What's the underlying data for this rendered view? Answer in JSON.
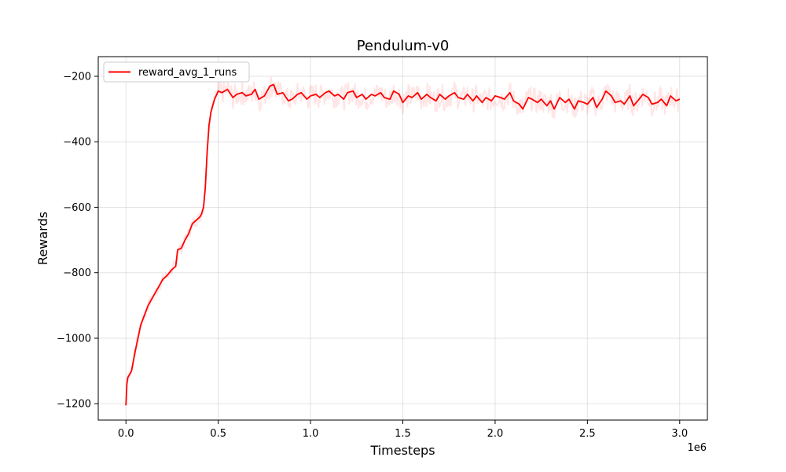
{
  "chart_data": {
    "type": "line",
    "title": "Pendulum-v0",
    "xlabel": "Timesteps",
    "ylabel": "Rewards",
    "x_scale_label": "1e6",
    "xlim": [
      -0.15,
      3.15
    ],
    "ylim": [
      -1250,
      -140
    ],
    "x_ticks": [
      0.0,
      0.5,
      1.0,
      1.5,
      2.0,
      2.5,
      3.0
    ],
    "x_tick_labels": [
      "0.0",
      "0.5",
      "1.0",
      "1.5",
      "2.0",
      "2.5",
      "3.0"
    ],
    "y_ticks": [
      -1200,
      -1000,
      -800,
      -600,
      -400,
      -200
    ],
    "y_tick_labels": [
      "−1200",
      "−1000",
      "−800",
      "−600",
      "−400",
      "−200"
    ],
    "grid": true,
    "legend_position": "top-left",
    "series": [
      {
        "name": "reward_avg_1_runs",
        "color": "#ff0000",
        "raw_color": "#ff0000",
        "raw_alpha": 0.1,
        "x": [
          0.0,
          0.005,
          0.01,
          0.03,
          0.05,
          0.08,
          0.1,
          0.12,
          0.15,
          0.18,
          0.2,
          0.22,
          0.25,
          0.27,
          0.28,
          0.3,
          0.32,
          0.34,
          0.36,
          0.38,
          0.4,
          0.41,
          0.42,
          0.43,
          0.44,
          0.45,
          0.46,
          0.47,
          0.48,
          0.5,
          0.52,
          0.55,
          0.58,
          0.6,
          0.63,
          0.65,
          0.68,
          0.7,
          0.72,
          0.75,
          0.78,
          0.8,
          0.82,
          0.85,
          0.88,
          0.9,
          0.93,
          0.95,
          0.98,
          1.0,
          1.03,
          1.05,
          1.08,
          1.1,
          1.13,
          1.15,
          1.18,
          1.2,
          1.23,
          1.25,
          1.28,
          1.3,
          1.33,
          1.35,
          1.38,
          1.4,
          1.43,
          1.45,
          1.48,
          1.5,
          1.53,
          1.55,
          1.58,
          1.6,
          1.63,
          1.65,
          1.68,
          1.7,
          1.73,
          1.75,
          1.78,
          1.8,
          1.83,
          1.85,
          1.88,
          1.9,
          1.93,
          1.95,
          1.98,
          2.0,
          2.03,
          2.05,
          2.08,
          2.1,
          2.13,
          2.15,
          2.18,
          2.2,
          2.23,
          2.25,
          2.28,
          2.3,
          2.32,
          2.35,
          2.38,
          2.4,
          2.43,
          2.45,
          2.48,
          2.5,
          2.53,
          2.55,
          2.58,
          2.6,
          2.63,
          2.65,
          2.68,
          2.7,
          2.73,
          2.75,
          2.78,
          2.8,
          2.83,
          2.85,
          2.88,
          2.9,
          2.93,
          2.95,
          2.98,
          3.0
        ],
        "y": [
          -1205,
          -1140,
          -1120,
          -1100,
          -1040,
          -960,
          -930,
          -900,
          -870,
          -840,
          -820,
          -810,
          -790,
          -780,
          -730,
          -725,
          -700,
          -680,
          -650,
          -640,
          -630,
          -620,
          -600,
          -540,
          -430,
          -350,
          -310,
          -290,
          -270,
          -245,
          -250,
          -240,
          -265,
          -255,
          -250,
          -260,
          -255,
          -240,
          -270,
          -260,
          -230,
          -225,
          -255,
          -250,
          -275,
          -270,
          -255,
          -250,
          -270,
          -260,
          -255,
          -265,
          -250,
          -245,
          -260,
          -255,
          -270,
          -250,
          -245,
          -265,
          -255,
          -270,
          -255,
          -260,
          -250,
          -265,
          -270,
          -245,
          -255,
          -280,
          -260,
          -265,
          -250,
          -270,
          -255,
          -265,
          -275,
          -255,
          -270,
          -260,
          -250,
          -265,
          -270,
          -255,
          -275,
          -260,
          -280,
          -265,
          -275,
          -260,
          -265,
          -270,
          -250,
          -275,
          -285,
          -300,
          -265,
          -270,
          -280,
          -270,
          -290,
          -275,
          -300,
          -265,
          -280,
          -270,
          -300,
          -275,
          -280,
          -285,
          -265,
          -295,
          -270,
          -245,
          -260,
          -280,
          -275,
          -285,
          -260,
          -290,
          -270,
          -255,
          -265,
          -285,
          -280,
          -270,
          -290,
          -260,
          -275,
          -270
        ]
      }
    ]
  }
}
